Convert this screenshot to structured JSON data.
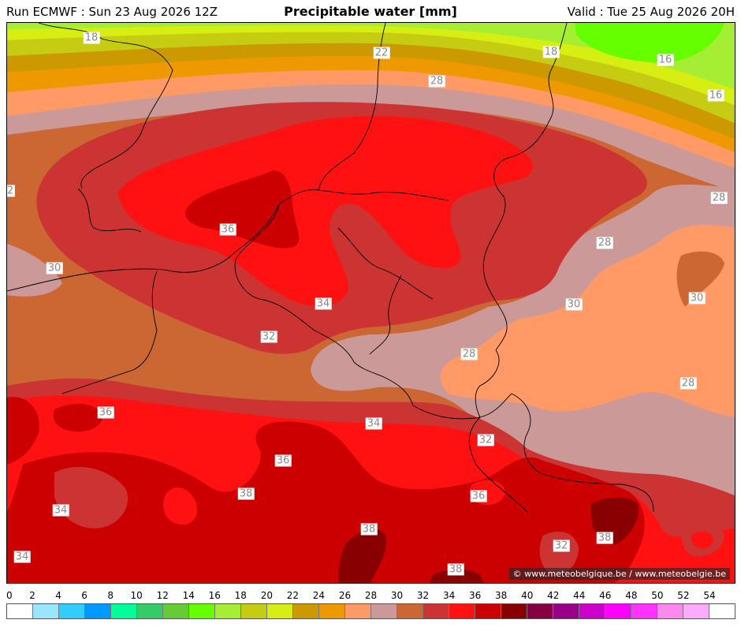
{
  "header": {
    "run": "Run ECMWF : Sun 23 Aug 2026 12Z",
    "title": "Precipitable water [mm]",
    "valid": "Valid : Tue 25 Aug 2026 20H"
  },
  "credit": "© www.meteobelgique.be / www.meteobelgie.be",
  "colorscale": {
    "ticks": [
      "0",
      "2",
      "4",
      "6",
      "8",
      "10",
      "12",
      "14",
      "16",
      "18",
      "20",
      "22",
      "24",
      "26",
      "28",
      "30",
      "32",
      "34",
      "36",
      "38",
      "40",
      "42",
      "44",
      "46",
      "48",
      "50",
      "52",
      "54"
    ],
    "colors": [
      "#ffffff",
      "#99e6ff",
      "#33ccff",
      "#0099ff",
      "#00ff99",
      "#33cc66",
      "#66cc33",
      "#66ff00",
      "#a6ee33",
      "#c6cc11",
      "#d6ee11",
      "#cc9900",
      "#ee9900",
      "#ff9966",
      "#cc9999",
      "#cc6633",
      "#cc3333",
      "#ff1111",
      "#cc0000",
      "#880000",
      "#880044",
      "#990088",
      "#cc00cc",
      "#ff00ff",
      "#ff33ff",
      "#ff88ee",
      "#ffaaff",
      "#ffffff"
    ]
  },
  "map": {
    "contour_labels": [
      {
        "text": "18"
      },
      {
        "text": "22"
      },
      {
        "text": "18"
      },
      {
        "text": "16"
      },
      {
        "text": "16"
      },
      {
        "text": "28"
      },
      {
        "text": "28"
      },
      {
        "text": "28"
      },
      {
        "text": "30"
      },
      {
        "text": "30"
      },
      {
        "text": "30"
      },
      {
        "text": "36"
      },
      {
        "text": "34"
      },
      {
        "text": "32"
      },
      {
        "text": "28"
      },
      {
        "text": "28"
      },
      {
        "text": "36"
      },
      {
        "text": "34"
      },
      {
        "text": "32"
      },
      {
        "text": "36"
      },
      {
        "text": "38"
      },
      {
        "text": "36"
      },
      {
        "text": "34"
      },
      {
        "text": "38"
      },
      {
        "text": "38"
      },
      {
        "text": "32"
      },
      {
        "text": "38"
      },
      {
        "text": "34"
      },
      {
        "text": "2"
      }
    ]
  }
}
